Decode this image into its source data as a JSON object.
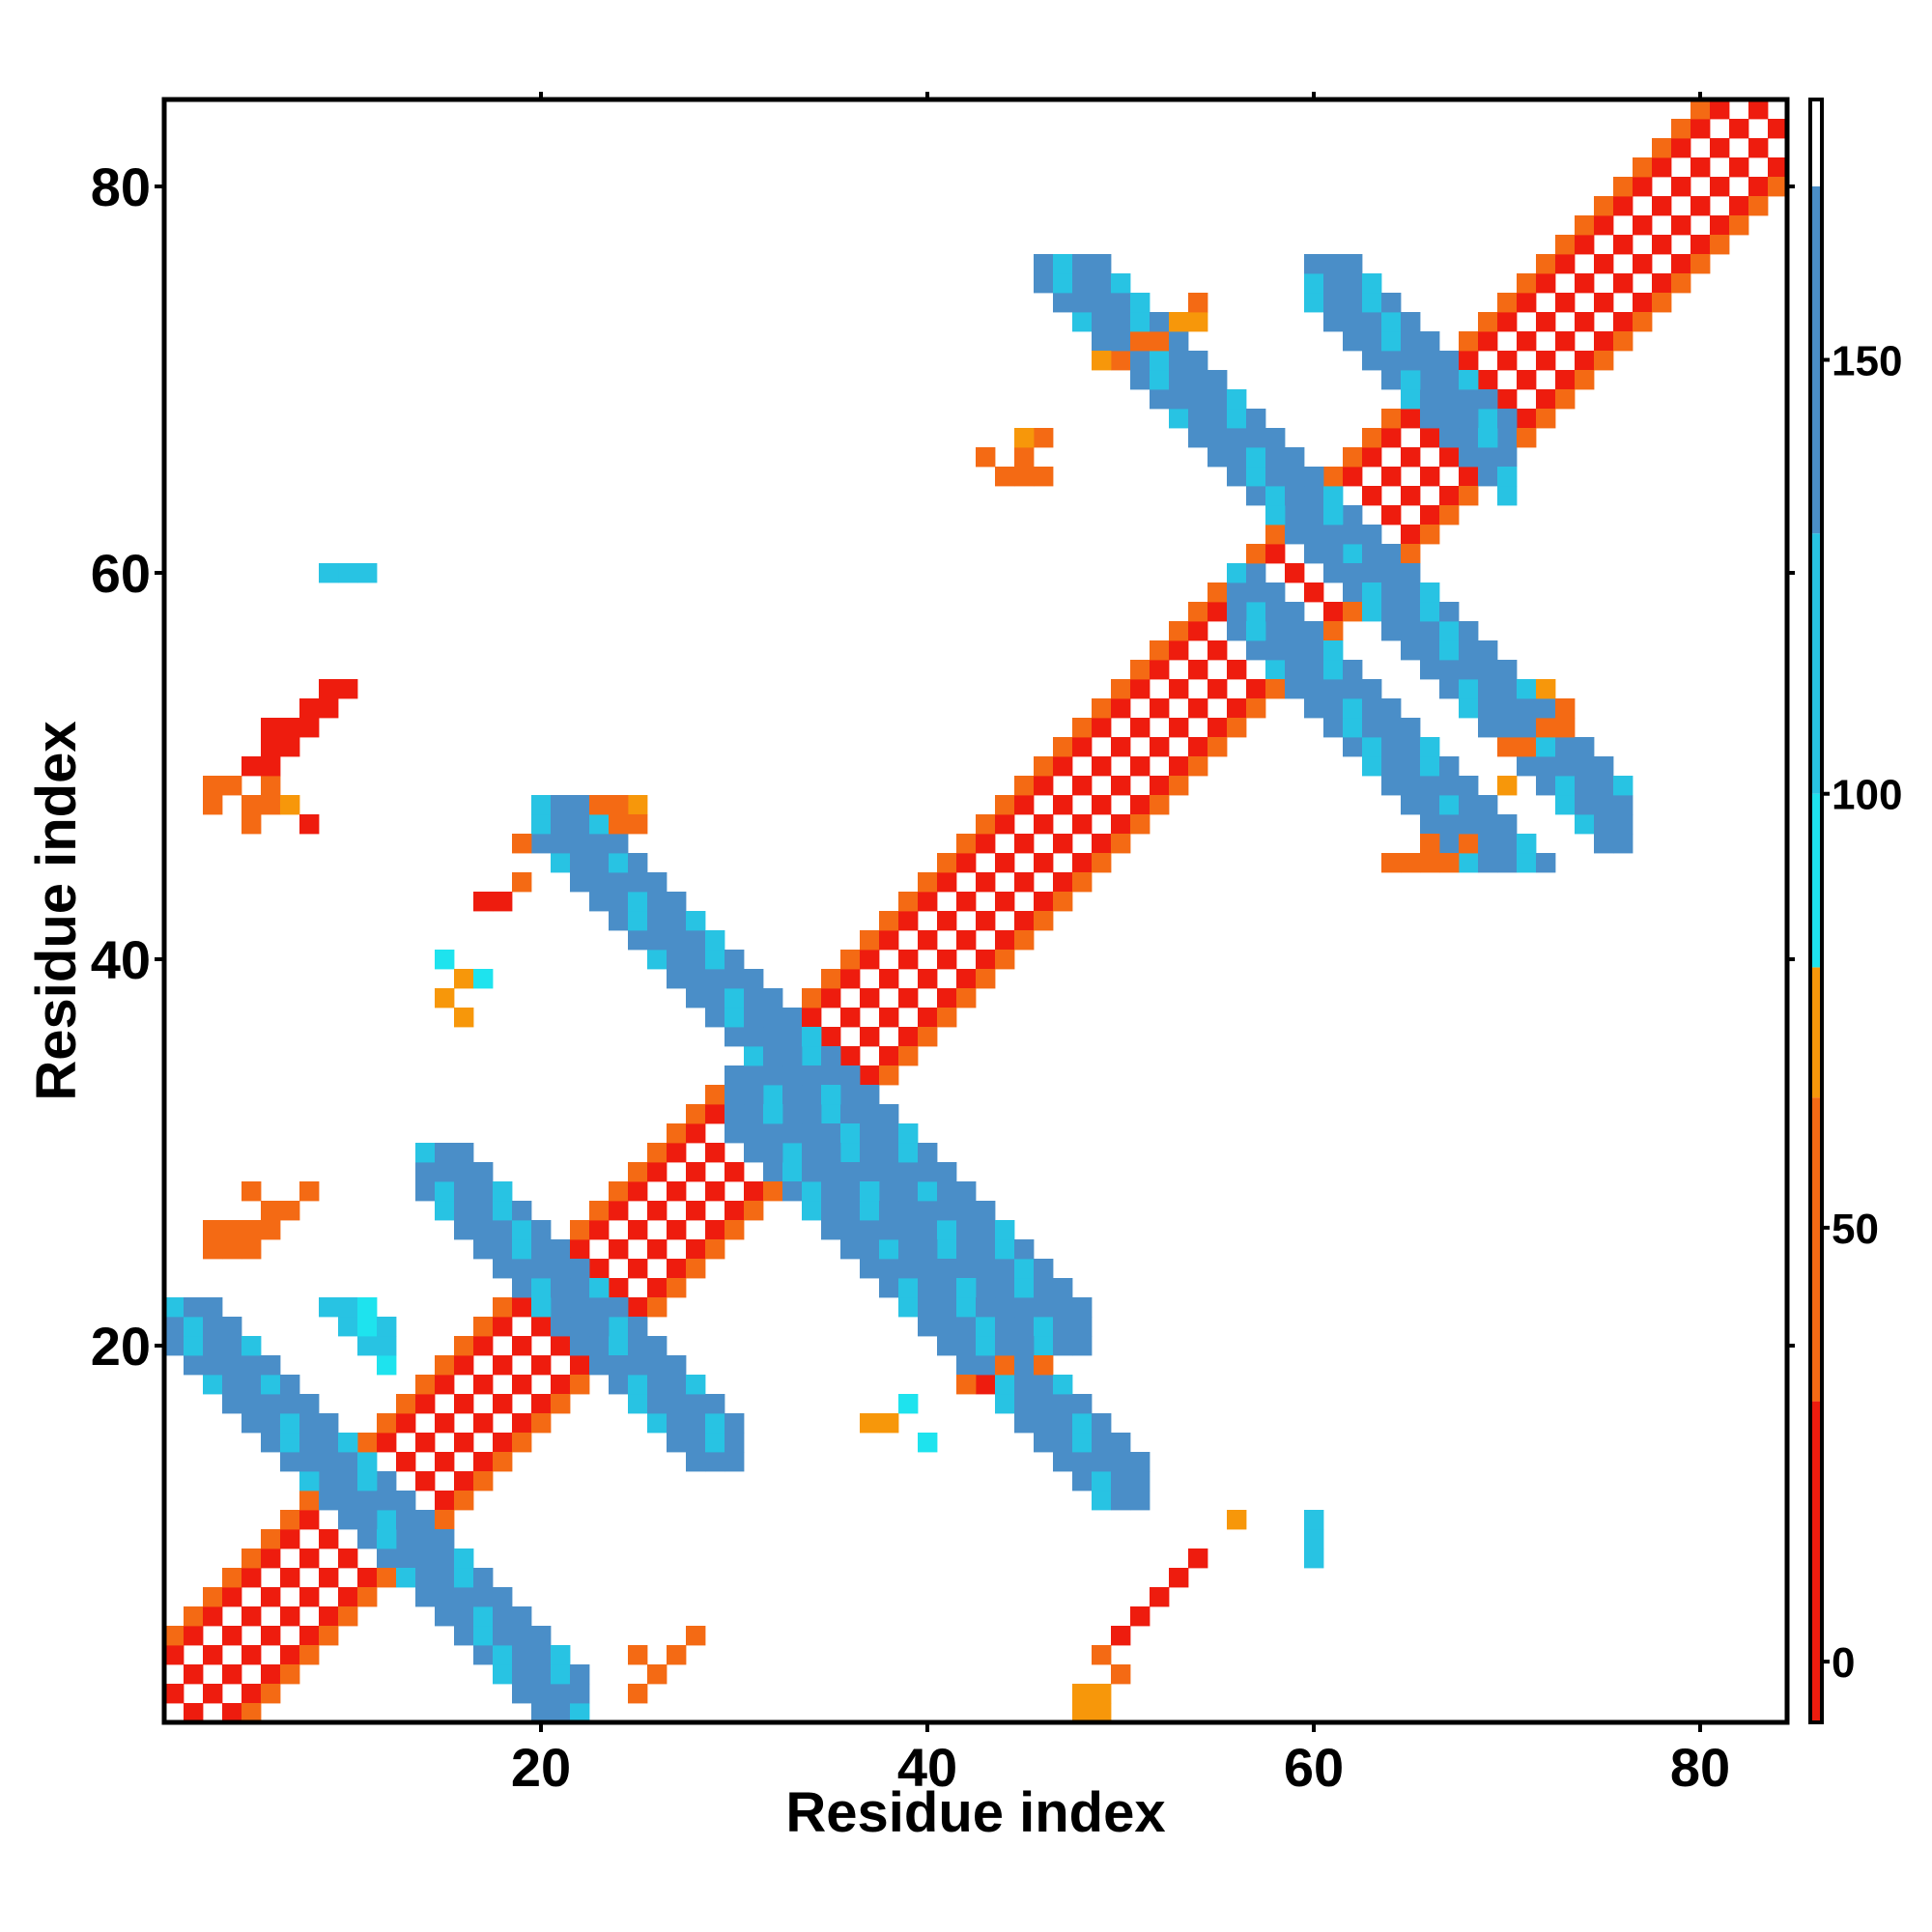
{
  "chart_data": {
    "type": "heatmap",
    "title": "",
    "xlabel": "Residue index",
    "ylabel": "Residue index",
    "xlim": [
      1,
      84
    ],
    "ylim": [
      1,
      84
    ],
    "x_ticks": [
      20,
      40,
      60,
      80
    ],
    "y_ticks": [
      20,
      40,
      60,
      80
    ],
    "grid": false,
    "legend": "colorbar-right",
    "colorbar": {
      "range": [
        -7,
        180
      ],
      "ticks": [
        0,
        50,
        100,
        150
      ],
      "bands": [
        {
          "from": -7,
          "to": 30,
          "color": "#ee1c0e"
        },
        {
          "from": 30,
          "to": 65,
          "color": "#f46a14"
        },
        {
          "from": 65,
          "to": 80,
          "color": "#f7970a"
        },
        {
          "from": 80,
          "to": 100,
          "color": "#1ee3ee"
        },
        {
          "from": 100,
          "to": 130,
          "color": "#28c3e3"
        },
        {
          "from": 130,
          "to": 170,
          "color": "#4a8ec8"
        },
        {
          "from": 170,
          "to": 180,
          "color": "#ffffff"
        }
      ]
    },
    "cell_colors": {
      "red": "#ee1c0e",
      "orange": "#f46a14",
      "amber": "#f7970a",
      "cyan": "#1ee3ee",
      "sky": "#28c3e3",
      "steel": "#4a8ec8"
    },
    "diagonal_band": {
      "from": 1,
      "to": 84,
      "offsets": [
        -1,
        1,
        -3,
        3,
        -4,
        4
      ],
      "values": [
        -2,
        -2,
        18,
        18,
        45,
        45
      ]
    },
    "anti_diagonal_blocks": [
      {
        "i_from": 1,
        "i_to": 22,
        "j_from": 1,
        "j_to": 22,
        "center": 23,
        "width": 2,
        "value": 145
      },
      {
        "i_from": 8,
        "i_to": 12,
        "j_from": 12,
        "j_to": 22,
        "center": 32,
        "width": 1,
        "value": 115
      },
      {
        "i_from": 14,
        "i_to": 30,
        "j_from": 14,
        "j_to": 30,
        "center": 44,
        "width": 2,
        "value": 145
      },
      {
        "i_from": 20,
        "i_to": 48,
        "j_from": 20,
        "j_to": 48,
        "center": 68,
        "width": 2,
        "value": 145
      },
      {
        "i_from": 30,
        "i_to": 51,
        "j_from": 12,
        "j_to": 34,
        "center": 63,
        "width": 2,
        "value": 145
      },
      {
        "i_from": 46,
        "i_to": 76,
        "j_from": 46,
        "j_to": 76,
        "center": 123,
        "width": 2,
        "value": 145
      },
      {
        "i_from": 56,
        "i_to": 75,
        "j_from": 45,
        "j_to": 60,
        "center": 115,
        "width": 2,
        "value": 145
      },
      {
        "i_from": 60,
        "i_to": 70,
        "j_from": 63,
        "j_to": 76,
        "center": 136,
        "width": 2,
        "value": 145
      }
    ],
    "patches": [
      {
        "i": 3,
        "j": 49,
        "value": 60
      },
      {
        "i": 4,
        "j": 49,
        "value": 60
      },
      {
        "i": 3,
        "j": 48,
        "value": 60
      },
      {
        "i": 5,
        "j": 50,
        "value": 20
      },
      {
        "i": 6,
        "j": 51,
        "value": 20
      },
      {
        "i": 7,
        "j": 52,
        "value": 20
      },
      {
        "i": 8,
        "j": 53,
        "value": 20
      },
      {
        "i": 9,
        "j": 54,
        "value": 20
      },
      {
        "i": 6,
        "j": 52,
        "value": 20
      },
      {
        "i": 10,
        "j": 60,
        "value": 115
      },
      {
        "i": 11,
        "j": 60,
        "value": 115
      },
      {
        "i": 3,
        "j": 25,
        "value": 50
      },
      {
        "i": 4,
        "j": 25,
        "value": 50
      },
      {
        "i": 5,
        "j": 25,
        "value": 50
      },
      {
        "i": 6,
        "j": 26,
        "value": 50
      },
      {
        "i": 7,
        "j": 27,
        "value": 50
      },
      {
        "i": 8,
        "j": 28,
        "value": 60
      },
      {
        "i": 15,
        "j": 40,
        "value": 95
      },
      {
        "i": 16,
        "j": 39,
        "value": 70
      },
      {
        "i": 17,
        "j": 39,
        "value": 95
      },
      {
        "i": 16,
        "j": 37,
        "value": 70
      },
      {
        "i": 15,
        "j": 38,
        "value": 70
      },
      {
        "i": 17,
        "j": 43,
        "value": 20
      },
      {
        "i": 18,
        "j": 43,
        "value": 20
      },
      {
        "i": 19,
        "j": 44,
        "value": 50
      },
      {
        "i": 19,
        "j": 46,
        "value": 50
      },
      {
        "i": 25,
        "j": 2,
        "value": 50
      },
      {
        "i": 26,
        "j": 3,
        "value": 50
      },
      {
        "i": 27,
        "j": 4,
        "value": 50
      },
      {
        "i": 28,
        "j": 5,
        "value": 60
      },
      {
        "i": 25,
        "j": 4,
        "value": 50
      },
      {
        "i": 37,
        "j": 16,
        "value": 70
      },
      {
        "i": 38,
        "j": 16,
        "value": 70
      },
      {
        "i": 39,
        "j": 17,
        "value": 95
      },
      {
        "i": 40,
        "j": 15,
        "value": 95
      },
      {
        "i": 42,
        "j": 18,
        "value": 30
      },
      {
        "i": 43,
        "j": 18,
        "value": 20
      },
      {
        "i": 44,
        "j": 19,
        "value": 30
      },
      {
        "i": 46,
        "j": 19,
        "value": 50
      },
      {
        "i": 48,
        "j": 2,
        "value": 70
      },
      {
        "i": 49,
        "j": 2,
        "value": 70
      },
      {
        "i": 49,
        "j": 4,
        "value": 60
      },
      {
        "i": 50,
        "j": 3,
        "value": 50
      },
      {
        "i": 50,
        "j": 5,
        "value": 20
      },
      {
        "i": 51,
        "j": 6,
        "value": 20
      },
      {
        "i": 52,
        "j": 7,
        "value": 20
      },
      {
        "i": 53,
        "j": 8,
        "value": 20
      },
      {
        "i": 54,
        "j": 9,
        "value": 20
      },
      {
        "i": 60,
        "j": 10,
        "value": 115
      },
      {
        "i": 60,
        "j": 11,
        "value": 115
      },
      {
        "i": 49,
        "j": 1,
        "value": 70
      },
      {
        "i": 48,
        "j": 1,
        "value": 70
      },
      {
        "i": 25,
        "j": 48,
        "value": 70
      },
      {
        "i": 24,
        "j": 48,
        "value": 50
      },
      {
        "i": 24,
        "j": 47,
        "value": 50
      },
      {
        "i": 25,
        "j": 47,
        "value": 60
      },
      {
        "i": 23,
        "j": 48,
        "value": 50
      },
      {
        "i": 5,
        "j": 48,
        "value": 50
      },
      {
        "i": 6,
        "j": 48,
        "value": 50
      },
      {
        "i": 7,
        "j": 48,
        "value": 70
      },
      {
        "i": 6,
        "j": 49,
        "value": 60
      },
      {
        "i": 5,
        "j": 47,
        "value": 60
      },
      {
        "i": 8,
        "j": 47,
        "value": 20
      },
      {
        "i": 5,
        "j": 50,
        "value": 20
      },
      {
        "i": 6,
        "j": 50,
        "value": 20
      },
      {
        "i": 7,
        "j": 51,
        "value": 20
      },
      {
        "i": 8,
        "j": 52,
        "value": 20
      },
      {
        "i": 9,
        "j": 53,
        "value": 20
      },
      {
        "i": 10,
        "j": 54,
        "value": 20
      },
      {
        "i": 9,
        "j": 60,
        "value": 115
      },
      {
        "i": 10,
        "j": 60,
        "value": 115
      },
      {
        "i": 5,
        "j": 26,
        "value": 50
      },
      {
        "i": 6,
        "j": 27,
        "value": 50
      },
      {
        "i": 7,
        "j": 27,
        "value": 50
      },
      {
        "i": 8,
        "j": 28,
        "value": 60
      },
      {
        "i": 4,
        "j": 26,
        "value": 50
      },
      {
        "i": 3,
        "j": 26,
        "value": 50
      },
      {
        "i": 5,
        "j": 28,
        "value": 50
      },
      {
        "i": 3,
        "j": 25,
        "value": 50
      },
      {
        "i": 68,
        "j": 46,
        "value": 60
      },
      {
        "i": 67,
        "j": 45,
        "value": 50
      },
      {
        "i": 66,
        "j": 45,
        "value": 50
      },
      {
        "i": 65,
        "j": 45,
        "value": 50
      },
      {
        "i": 64,
        "j": 45,
        "value": 50
      },
      {
        "i": 66,
        "j": 46,
        "value": 60
      },
      {
        "i": 73,
        "j": 52,
        "value": 50
      },
      {
        "i": 72,
        "j": 52,
        "value": 50
      },
      {
        "i": 71,
        "j": 51,
        "value": 50
      },
      {
        "i": 70,
        "j": 51,
        "value": 50
      },
      {
        "i": 73,
        "j": 53,
        "value": 60
      },
      {
        "i": 72,
        "j": 54,
        "value": 70
      },
      {
        "i": 70,
        "j": 49,
        "value": 70
      },
      {
        "i": 45,
        "j": 65,
        "value": 50
      },
      {
        "i": 45,
        "j": 66,
        "value": 50
      },
      {
        "i": 46,
        "j": 67,
        "value": 60
      },
      {
        "i": 44,
        "j": 65,
        "value": 50
      },
      {
        "i": 43,
        "j": 66,
        "value": 50
      },
      {
        "i": 45,
        "j": 67,
        "value": 70
      },
      {
        "i": 46,
        "j": 65,
        "value": 50
      },
      {
        "i": 50,
        "j": 71,
        "value": 50
      },
      {
        "i": 51,
        "j": 72,
        "value": 50
      },
      {
        "i": 52,
        "j": 72,
        "value": 50
      },
      {
        "i": 53,
        "j": 73,
        "value": 70
      },
      {
        "i": 54,
        "j": 73,
        "value": 70
      },
      {
        "i": 54,
        "j": 74,
        "value": 60
      },
      {
        "i": 49,
        "j": 71,
        "value": 70
      },
      {
        "i": 56,
        "j": 11,
        "value": 70
      },
      {
        "i": 60,
        "j": 9,
        "value": 115
      }
    ]
  }
}
